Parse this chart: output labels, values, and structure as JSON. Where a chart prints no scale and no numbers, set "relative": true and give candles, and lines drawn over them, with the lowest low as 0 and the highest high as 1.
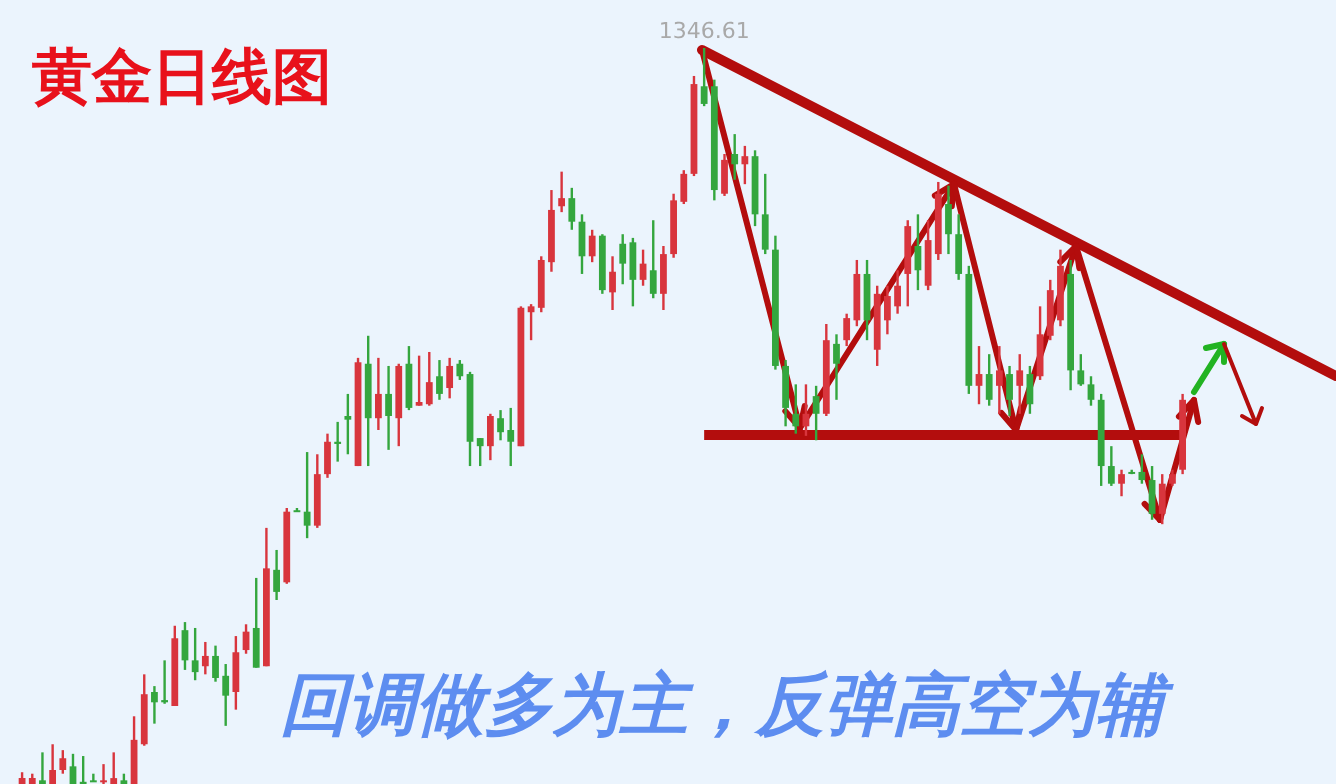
{
  "chart_data": {
    "type": "candlestick",
    "title": "黄金日线图",
    "relative": true,
    "tick_labels": false,
    "ref_lines": [
      {
        "axis": "y",
        "value": 0.4755,
        "color": "#b30d0d"
      }
    ],
    "annotations": [
      {
        "text": "1346.61",
        "y": 1
      },
      "回调做多为主，反弹高空为辅"
    ],
    "categories": [
      null,
      null,
      null,
      null,
      null,
      null,
      null,
      null,
      null,
      null,
      null,
      null,
      null,
      null,
      null,
      null,
      null,
      null,
      null,
      null,
      null,
      null,
      null,
      null,
      null,
      null,
      null,
      null,
      null,
      null,
      null,
      null,
      null,
      null,
      null,
      null,
      null,
      null,
      null,
      null,
      null,
      null,
      null,
      null,
      null,
      null,
      null,
      null,
      null,
      null,
      null,
      null,
      null,
      null,
      null,
      null,
      null,
      null,
      null,
      null,
      null,
      null,
      null,
      null,
      null,
      null,
      null,
      null,
      null,
      null,
      null,
      null,
      null,
      null,
      null,
      null,
      null,
      null,
      null,
      null,
      null,
      null,
      null,
      null,
      null,
      null,
      null,
      null,
      null,
      null,
      null,
      null,
      null,
      null,
      null,
      null,
      null,
      null,
      null,
      null,
      null,
      null,
      null,
      null,
      null,
      null,
      null,
      null,
      null,
      null,
      null,
      null,
      null,
      null,
      null
    ],
    "ohlc": [
      [
        0,
        0.016,
        0,
        0.008
      ],
      [
        0,
        0.014,
        0,
        0.008
      ],
      [
        0.005,
        0.043,
        0,
        0
      ],
      [
        0,
        0.054,
        0,
        0.019
      ],
      [
        0.019,
        0.046,
        0.014,
        0.035
      ],
      [
        0.024,
        0.041,
        0,
        0
      ],
      [
        0.003,
        0.038,
        0,
        0
      ],
      [
        0.005,
        0.014,
        0.003,
        0.003
      ],
      [
        0.003,
        0.027,
        0,
        0.005
      ],
      [
        0,
        0.043,
        0,
        0.008
      ],
      [
        0.005,
        0.014,
        0,
        0
      ],
      [
        0,
        0.092,
        0,
        0.06
      ],
      [
        0.054,
        0.149,
        0.052,
        0.122
      ],
      [
        0.125,
        0.133,
        0.082,
        0.111
      ],
      [
        0.114,
        0.168,
        0.109,
        0.111
      ],
      [
        0.106,
        0.215,
        0.106,
        0.198
      ],
      [
        0.209,
        0.22,
        0.155,
        0.168
      ],
      [
        0.168,
        0.212,
        0.141,
        0.152
      ],
      [
        0.16,
        0.193,
        0.149,
        0.174
      ],
      [
        0.174,
        0.188,
        0.139,
        0.144
      ],
      [
        0.147,
        0.163,
        0.079,
        0.12
      ],
      [
        0.125,
        0.201,
        0.101,
        0.179
      ],
      [
        0.182,
        0.217,
        0.177,
        0.207
      ],
      [
        0.212,
        0.28,
        0.158,
        0.158
      ],
      [
        0.16,
        0.348,
        0.16,
        0.293
      ],
      [
        0.291,
        0.318,
        0.25,
        0.261
      ],
      [
        0.274,
        0.375,
        0.272,
        0.37
      ],
      [
        0.372,
        0.375,
        0.37,
        0.37
      ],
      [
        0.37,
        0.451,
        0.334,
        0.351
      ],
      [
        0.351,
        0.448,
        0.348,
        0.421
      ],
      [
        0.421,
        0.476,
        0.416,
        0.465
      ],
      [
        0.465,
        0.492,
        0.438,
        0.462
      ],
      [
        0.5,
        0.53,
        0.448,
        0.495
      ],
      [
        0.432,
        0.579,
        0.432,
        0.573
      ],
      [
        0.571,
        0.609,
        0.432,
        0.497
      ],
      [
        0.497,
        0.579,
        0.481,
        0.53
      ],
      [
        0.53,
        0.568,
        0.454,
        0.5
      ],
      [
        0.497,
        0.571,
        0.459,
        0.568
      ],
      [
        0.571,
        0.595,
        0.508,
        0.511
      ],
      [
        0.514,
        0.582,
        0.514,
        0.519
      ],
      [
        0.516,
        0.587,
        0.514,
        0.546
      ],
      [
        0.554,
        0.576,
        0.522,
        0.53
      ],
      [
        0.538,
        0.579,
        0.524,
        0.568
      ],
      [
        0.571,
        0.576,
        0.549,
        0.554
      ],
      [
        0.557,
        0.56,
        0.432,
        0.465
      ],
      [
        0.47,
        0.47,
        0.432,
        0.459
      ],
      [
        0.459,
        0.503,
        0.44,
        0.5
      ],
      [
        0.497,
        0.508,
        0.467,
        0.478
      ],
      [
        0.481,
        0.511,
        0.432,
        0.465
      ],
      [
        0.459,
        0.649,
        0.459,
        0.647
      ],
      [
        0.641,
        0.652,
        0.603,
        0.649
      ],
      [
        0.647,
        0.717,
        0.641,
        0.712
      ],
      [
        0.709,
        0.807,
        0.696,
        0.78
      ],
      [
        0.785,
        0.832,
        0.777,
        0.796
      ],
      [
        0.796,
        0.81,
        0.753,
        0.764
      ],
      [
        0.764,
        0.774,
        0.693,
        0.717
      ],
      [
        0.717,
        0.753,
        0.709,
        0.745
      ],
      [
        0.745,
        0.747,
        0.666,
        0.671
      ],
      [
        0.668,
        0.717,
        0.644,
        0.696
      ],
      [
        0.734,
        0.747,
        0.679,
        0.707
      ],
      [
        0.736,
        0.742,
        0.649,
        0.685
      ],
      [
        0.685,
        0.726,
        0.677,
        0.707
      ],
      [
        0.698,
        0.766,
        0.66,
        0.666
      ],
      [
        0.666,
        0.731,
        0.644,
        0.72
      ],
      [
        0.72,
        0.802,
        0.715,
        0.793
      ],
      [
        0.791,
        0.834,
        0.788,
        0.829
      ],
      [
        0.829,
        0.962,
        0.826,
        0.951
      ],
      [
        0.948,
        1,
        0.921,
        0.924
      ],
      [
        0.948,
        0.957,
        0.793,
        0.807
      ],
      [
        0.802,
        0.856,
        0.799,
        0.848
      ],
      [
        0.856,
        0.883,
        0.821,
        0.842
      ],
      [
        0.842,
        0.867,
        0.815,
        0.853
      ],
      [
        0.853,
        0.861,
        0.758,
        0.774
      ],
      [
        0.774,
        0.829,
        0.72,
        0.726
      ],
      [
        0.726,
        0.745,
        0.563,
        0.568
      ],
      [
        0.568,
        0.576,
        0.486,
        0.511
      ],
      [
        0.503,
        0.543,
        0.476,
        0.486
      ],
      [
        0.486,
        0.543,
        0.473,
        0.503
      ],
      [
        0.527,
        0.541,
        0.467,
        0.503
      ],
      [
        0.503,
        0.625,
        0.5,
        0.603
      ],
      [
        0.598,
        0.611,
        0.522,
        0.571
      ],
      [
        0.603,
        0.639,
        0.595,
        0.633
      ],
      [
        0.63,
        0.712,
        0.622,
        0.693
      ],
      [
        0.693,
        0.712,
        0.603,
        0.63
      ],
      [
        0.59,
        0.677,
        0.568,
        0.666
      ],
      [
        0.63,
        0.677,
        0.611,
        0.663
      ],
      [
        0.649,
        0.698,
        0.639,
        0.677
      ],
      [
        0.693,
        0.766,
        0.649,
        0.758
      ],
      [
        0.731,
        0.774,
        0.671,
        0.698
      ],
      [
        0.677,
        0.766,
        0.671,
        0.739
      ],
      [
        0.72,
        0.818,
        0.712,
        0.802
      ],
      [
        0.788,
        0.813,
        0.72,
        0.747
      ],
      [
        0.747,
        0.774,
        0.685,
        0.693
      ],
      [
        0.693,
        0.704,
        0.53,
        0.541
      ],
      [
        0.541,
        0.595,
        0.516,
        0.557
      ],
      [
        0.557,
        0.584,
        0.514,
        0.522
      ],
      [
        0.541,
        0.595,
        0.503,
        0.562
      ],
      [
        0.557,
        0.568,
        0.5,
        0.522
      ],
      [
        0.541,
        0.584,
        0.503,
        0.562
      ],
      [
        0.557,
        0.568,
        0.503,
        0.516
      ],
      [
        0.554,
        0.649,
        0.549,
        0.611
      ],
      [
        0.609,
        0.685,
        0.603,
        0.671
      ],
      [
        0.63,
        0.726,
        0.622,
        0.704
      ],
      [
        0.693,
        0.712,
        0.535,
        0.562
      ],
      [
        0.562,
        0.584,
        0.541,
        0.543
      ],
      [
        0.543,
        0.554,
        0.514,
        0.522
      ],
      [
        0.522,
        0.53,
        0.405,
        0.432
      ],
      [
        0.432,
        0.459,
        0.405,
        0.408
      ],
      [
        0.408,
        0.427,
        0.391,
        0.421
      ],
      [
        0.424,
        0.427,
        0.421,
        0.422
      ],
      [
        0.424,
        0.448,
        0.408,
        0.413
      ],
      [
        0.413,
        0.432,
        0.359,
        0.367
      ],
      [
        0.367,
        0.421,
        0.353,
        0.408
      ],
      [
        0.408,
        0.427,
        0.405,
        0.421
      ],
      [
        0.427,
        0.53,
        0.421,
        0.522
      ]
    ],
    "colors": [
      "#d8353d",
      "#d8353d",
      "#34a63e",
      "#d8353d",
      "#d8353d",
      "#34a63e",
      "#34a63e",
      "#34a63e",
      "#d8353d",
      "#d8353d",
      "#34a63e",
      "#d8353d",
      "#d8353d",
      "#34a63e",
      "#34a63e",
      "#d8353d",
      "#34a63e",
      "#34a63e",
      "#d8353d",
      "#34a63e",
      "#34a63e",
      "#d8353d",
      "#d8353d",
      "#34a63e",
      "#d8353d",
      "#34a63e",
      "#d8353d",
      "#34a63e",
      "#34a63e",
      "#d8353d",
      "#d8353d",
      "#34a63e",
      "#34a63e",
      "#d8353d",
      "#34a63e",
      "#d8353d",
      "#34a63e",
      "#d8353d",
      "#34a63e",
      "#d8353d",
      "#d8353d",
      "#34a63e",
      "#d8353d",
      "#34a63e",
      "#34a63e",
      "#34a63e",
      "#d8353d",
      "#34a63e",
      "#34a63e",
      "#d8353d",
      "#d8353d",
      "#d8353d",
      "#d8353d",
      "#d8353d",
      "#34a63e",
      "#34a63e",
      "#d8353d",
      "#34a63e",
      "#d8353d",
      "#34a63e",
      "#34a63e",
      "#d8353d",
      "#34a63e",
      "#d8353d",
      "#d8353d",
      "#d8353d",
      "#d8353d",
      "#34a63e",
      "#34a63e",
      "#d8353d",
      "#34a63e",
      "#d8353d",
      "#34a63e",
      "#34a63e",
      "#34a63e",
      "#34a63e",
      "#34a63e",
      "#d8353d",
      "#34a63e",
      "#d8353d",
      "#34a63e",
      "#d8353d",
      "#d8353d",
      "#34a63e",
      "#d8353d",
      "#d8353d",
      "#d8353d",
      "#d8353d",
      "#34a63e",
      "#d8353d",
      "#d8353d",
      "#34a63e",
      "#34a63e",
      "#34a63e",
      "#d8353d",
      "#34a63e",
      "#d8353d",
      "#34a63e",
      "#d8353d",
      "#34a63e",
      "#d8353d",
      "#d8353d",
      "#d8353d",
      "#34a63e",
      "#34a63e",
      "#34a63e",
      "#34a63e",
      "#34a63e",
      "#d8353d",
      "#34a63e",
      "#34a63e",
      "#34a63e",
      "#d8353d",
      "#d8353d",
      "#d8353d"
    ]
  }
}
